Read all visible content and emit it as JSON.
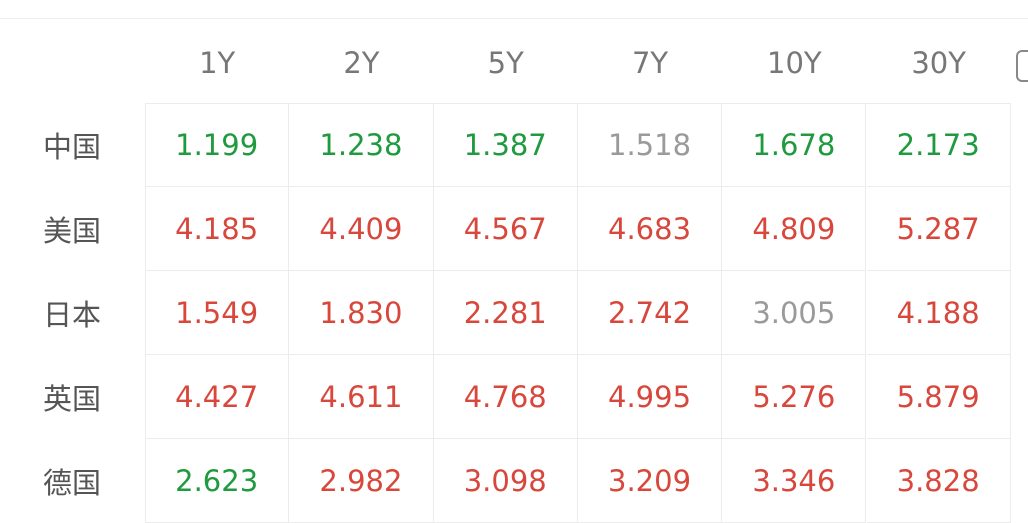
{
  "table": {
    "columns": [
      "1Y",
      "2Y",
      "5Y",
      "7Y",
      "10Y",
      "30Y"
    ],
    "rows": [
      {
        "label": "中国",
        "values": [
          "1.199",
          "1.238",
          "1.387",
          "1.518",
          "1.678",
          "2.173"
        ],
        "colors": [
          "#1f9a3e",
          "#1f9a3e",
          "#1f9a3e",
          "#9a9a9a",
          "#1f9a3e",
          "#1f9a3e"
        ]
      },
      {
        "label": "美国",
        "values": [
          "4.185",
          "4.409",
          "4.567",
          "4.683",
          "4.809",
          "5.287"
        ],
        "colors": [
          "#d8473b",
          "#d8473b",
          "#d8473b",
          "#d8473b",
          "#d8473b",
          "#d8473b"
        ]
      },
      {
        "label": "日本",
        "values": [
          "1.549",
          "1.830",
          "2.281",
          "2.742",
          "3.005",
          "4.188"
        ],
        "colors": [
          "#d8473b",
          "#d8473b",
          "#d8473b",
          "#d8473b",
          "#9a9a9a",
          "#d8473b"
        ]
      },
      {
        "label": "英国",
        "values": [
          "4.427",
          "4.611",
          "4.768",
          "4.995",
          "5.276",
          "5.879"
        ],
        "colors": [
          "#d8473b",
          "#d8473b",
          "#d8473b",
          "#d8473b",
          "#d8473b",
          "#d8473b"
        ]
      },
      {
        "label": "德国",
        "values": [
          "2.623",
          "2.982",
          "3.098",
          "3.209",
          "3.346",
          "3.828"
        ],
        "colors": [
          "#1f9a3e",
          "#d8473b",
          "#d8473b",
          "#d8473b",
          "#d8473b",
          "#d8473b"
        ]
      }
    ]
  }
}
